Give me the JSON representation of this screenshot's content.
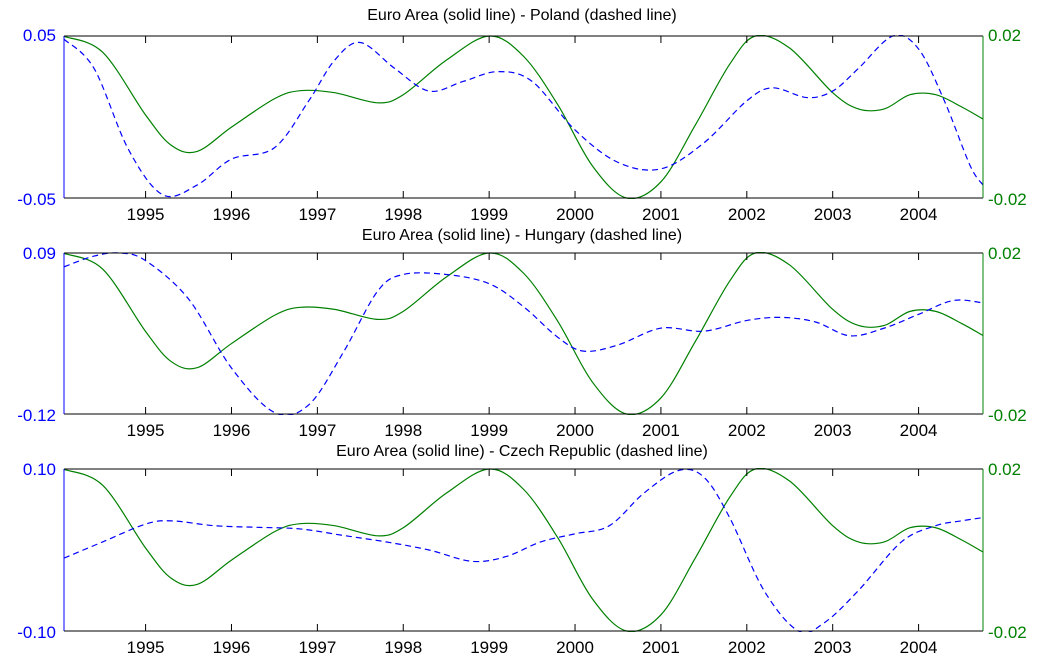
{
  "chart_data": [
    {
      "type": "line",
      "title": "Euro Area (solid line) - Poland (dashed line)",
      "xlim": [
        1994.05,
        2004.75
      ],
      "xticks": [
        1995,
        1996,
        1997,
        1998,
        1999,
        2000,
        2001,
        2002,
        2003,
        2004
      ],
      "y_left": {
        "lim": [
          -0.05,
          0.05
        ],
        "tick_labels": [
          "0.05",
          "-0.05"
        ]
      },
      "y_right": {
        "lim": [
          -0.02,
          0.02
        ],
        "tick_labels": [
          "0.02",
          "-0.02"
        ]
      },
      "grid": false,
      "series": [
        {
          "axis": "right",
          "style": "solid",
          "color": "#008000",
          "x": [
            1994.05,
            1994.5,
            1995.0,
            1995.3,
            1995.6,
            1996.0,
            1996.5,
            1996.8,
            1997.2,
            1997.7,
            1998.0,
            1998.5,
            1999.0,
            1999.4,
            1999.8,
            2000.2,
            2000.6,
            2001.0,
            2001.4,
            2001.8,
            2002.1,
            2002.5,
            2003.0,
            2003.3,
            2003.6,
            2003.9,
            2004.2,
            2004.5,
            2004.75
          ],
          "y": [
            0.0199,
            0.016,
            0.0005,
            -0.007,
            -0.0085,
            -0.0025,
            0.0045,
            0.0065,
            0.006,
            0.0035,
            0.0055,
            0.014,
            0.02,
            0.015,
            0.003,
            -0.012,
            -0.02,
            -0.016,
            -0.002,
            0.013,
            0.02,
            0.017,
            0.006,
            0.002,
            0.002,
            0.0055,
            0.0055,
            0.0025,
            -0.0005
          ]
        },
        {
          "axis": "left",
          "style": "dashed",
          "color": "#0000ff",
          "x": [
            1994.05,
            1994.4,
            1994.8,
            1995.2,
            1995.6,
            1996.0,
            1996.5,
            1996.9,
            1997.2,
            1997.5,
            1997.9,
            1998.3,
            1998.7,
            1999.1,
            1999.5,
            2000.0,
            2000.5,
            2001.0,
            2001.5,
            2002.0,
            2002.3,
            2002.7,
            2003.0,
            2003.3,
            2003.7,
            2004.0,
            2004.3,
            2004.6,
            2004.75
          ],
          "y": [
            0.048,
            0.03,
            -0.02,
            -0.048,
            -0.042,
            -0.026,
            -0.019,
            0.01,
            0.035,
            0.046,
            0.03,
            0.016,
            0.022,
            0.028,
            0.022,
            -0.008,
            -0.028,
            -0.032,
            -0.016,
            0.01,
            0.018,
            0.012,
            0.016,
            0.03,
            0.05,
            0.042,
            0.01,
            -0.03,
            -0.042
          ]
        }
      ]
    },
    {
      "type": "line",
      "title": "Euro Area (solid line) - Hungary (dashed line)",
      "xlim": [
        1994.05,
        2004.75
      ],
      "xticks": [
        1995,
        1996,
        1997,
        1998,
        1999,
        2000,
        2001,
        2002,
        2003,
        2004
      ],
      "y_left": {
        "lim": [
          -0.12,
          0.09
        ],
        "tick_labels": [
          "0.09",
          "-0.12"
        ]
      },
      "y_right": {
        "lim": [
          -0.02,
          0.02
        ],
        "tick_labels": [
          "0.02",
          "-0.02"
        ]
      },
      "grid": false,
      "series": [
        {
          "axis": "right",
          "style": "solid",
          "color": "#008000",
          "x": [
            1994.05,
            1994.5,
            1995.0,
            1995.3,
            1995.6,
            1996.0,
            1996.5,
            1996.8,
            1997.2,
            1997.7,
            1998.0,
            1998.5,
            1999.0,
            1999.4,
            1999.8,
            2000.2,
            2000.6,
            2001.0,
            2001.4,
            2001.8,
            2002.1,
            2002.5,
            2003.0,
            2003.3,
            2003.6,
            2003.9,
            2004.2,
            2004.5,
            2004.75
          ],
          "y": [
            0.0199,
            0.016,
            0.0005,
            -0.007,
            -0.0085,
            -0.0025,
            0.0045,
            0.0065,
            0.006,
            0.0035,
            0.0055,
            0.014,
            0.02,
            0.015,
            0.003,
            -0.012,
            -0.02,
            -0.016,
            -0.002,
            0.013,
            0.02,
            0.017,
            0.006,
            0.002,
            0.002,
            0.0055,
            0.0055,
            0.0025,
            -0.0005
          ]
        },
        {
          "axis": "left",
          "style": "dashed",
          "color": "#0000ff",
          "x": [
            1994.05,
            1994.4,
            1994.7,
            1995.0,
            1995.5,
            1996.0,
            1996.5,
            1996.9,
            1997.3,
            1997.7,
            1998.0,
            1998.5,
            1999.0,
            1999.4,
            1999.8,
            2000.1,
            2000.5,
            2001.0,
            2001.5,
            2002.0,
            2002.4,
            2002.8,
            2003.2,
            2003.6,
            2004.0,
            2004.4,
            2004.75
          ],
          "y": [
            0.072,
            0.086,
            0.09,
            0.08,
            0.03,
            -0.06,
            -0.118,
            -0.108,
            -0.04,
            0.04,
            0.062,
            0.062,
            0.05,
            0.02,
            -0.02,
            -0.038,
            -0.03,
            -0.008,
            -0.012,
            0.002,
            0.006,
            0.0,
            -0.018,
            -0.008,
            0.01,
            0.028,
            0.025
          ]
        }
      ]
    },
    {
      "type": "line",
      "title": "Euro Area (solid line) - Czech Republic (dashed line)",
      "xlim": [
        1994.05,
        2004.75
      ],
      "xticks": [
        1995,
        1996,
        1997,
        1998,
        1999,
        2000,
        2001,
        2002,
        2003,
        2004
      ],
      "y_left": {
        "lim": [
          -0.1,
          0.1
        ],
        "tick_labels": [
          "0.10",
          "-0.10"
        ]
      },
      "y_right": {
        "lim": [
          -0.02,
          0.02
        ],
        "tick_labels": [
          "0.02",
          "-0.02"
        ]
      },
      "grid": false,
      "series": [
        {
          "axis": "right",
          "style": "solid",
          "color": "#008000",
          "x": [
            1994.05,
            1994.5,
            1995.0,
            1995.3,
            1995.6,
            1996.0,
            1996.5,
            1996.8,
            1997.2,
            1997.7,
            1998.0,
            1998.5,
            1999.0,
            1999.4,
            1999.8,
            2000.2,
            2000.6,
            2001.0,
            2001.4,
            2001.8,
            2002.1,
            2002.5,
            2003.0,
            2003.3,
            2003.6,
            2003.9,
            2004.2,
            2004.5,
            2004.75
          ],
          "y": [
            0.0199,
            0.016,
            0.0005,
            -0.007,
            -0.0085,
            -0.0025,
            0.0045,
            0.0065,
            0.006,
            0.0035,
            0.0055,
            0.014,
            0.02,
            0.015,
            0.003,
            -0.012,
            -0.02,
            -0.016,
            -0.002,
            0.013,
            0.02,
            0.017,
            0.006,
            0.002,
            0.002,
            0.0055,
            0.0055,
            0.0025,
            -0.0005
          ]
        },
        {
          "axis": "left",
          "style": "dashed",
          "color": "#0000ff",
          "x": [
            1994.05,
            1994.5,
            1995.0,
            1995.3,
            1995.8,
            1996.3,
            1996.8,
            1997.3,
            1997.8,
            1998.3,
            1998.8,
            1999.2,
            1999.6,
            2000.0,
            2000.4,
            2000.8,
            2001.2,
            2001.5,
            2001.8,
            2002.2,
            2002.6,
            2002.9,
            2003.3,
            2003.8,
            2004.2,
            2004.5,
            2004.75
          ],
          "y": [
            -0.01,
            0.01,
            0.032,
            0.036,
            0.03,
            0.028,
            0.026,
            0.018,
            0.01,
            0.0,
            -0.014,
            -0.008,
            0.01,
            0.02,
            0.03,
            0.07,
            0.098,
            0.09,
            0.04,
            -0.05,
            -0.1,
            -0.09,
            -0.05,
            0.01,
            0.03,
            0.036,
            0.04
          ]
        }
      ]
    }
  ],
  "colors": {
    "left_axis": "#0000ff",
    "right_axis": "#008000",
    "frame": "#000000"
  }
}
